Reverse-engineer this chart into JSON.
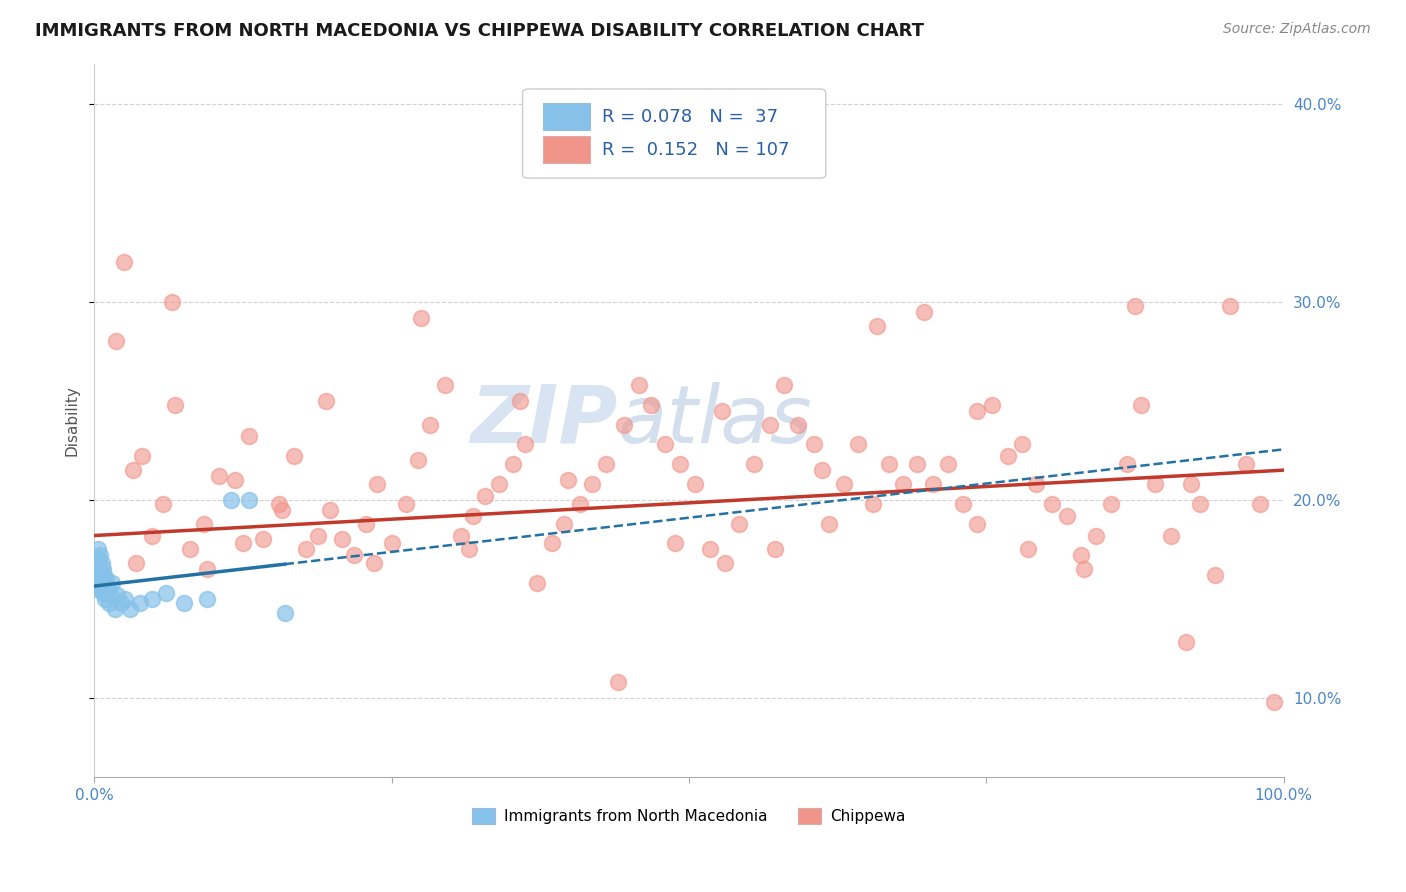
{
  "title": "IMMIGRANTS FROM NORTH MACEDONIA VS CHIPPEWA DISABILITY CORRELATION CHART",
  "source": "Source: ZipAtlas.com",
  "ylabel": "Disability",
  "xlim": [
    0.0,
    1.0
  ],
  "ylim": [
    0.06,
    0.42
  ],
  "y_ticks": [
    0.1,
    0.2,
    0.3,
    0.4
  ],
  "y_tick_labels": [
    "10.0%",
    "20.0%",
    "30.0%",
    "40.0%"
  ],
  "legend_R1": "0.078",
  "legend_N1": "37",
  "legend_R2": "0.152",
  "legend_N2": "107",
  "blue_color": "#85c1e9",
  "pink_color": "#f1948a",
  "blue_line_color": "#2471a3",
  "pink_line_color": "#c0392b",
  "background_color": "#ffffff",
  "grid_color": "#cccccc",
  "watermark_color": "#d0dff0",
  "title_fontsize": 13,
  "axis_label_fontsize": 11,
  "tick_fontsize": 11,
  "source_fontsize": 10
}
